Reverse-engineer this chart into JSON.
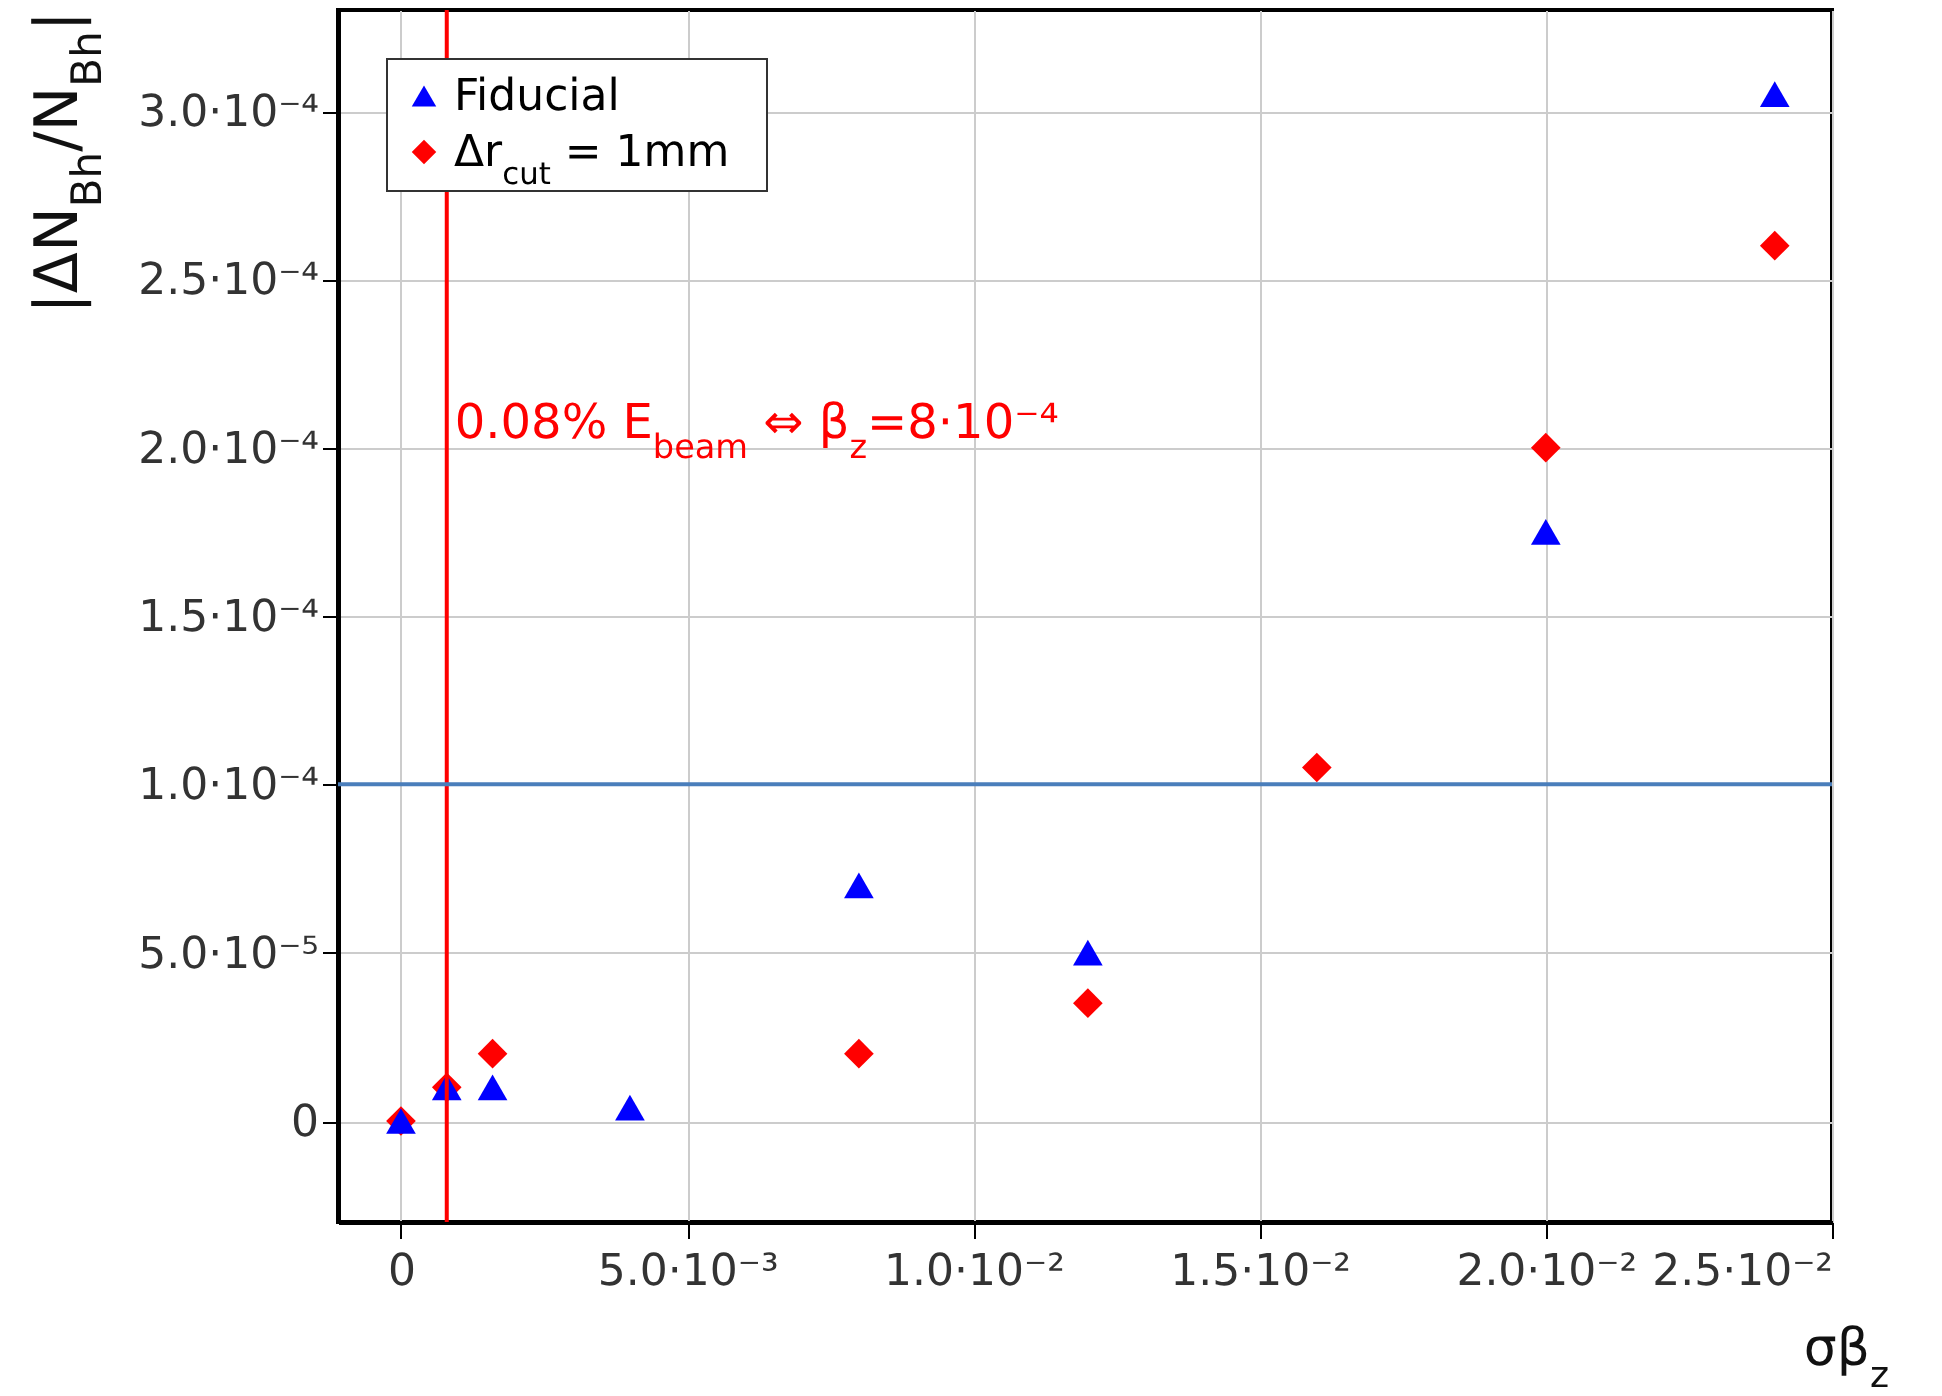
{
  "chart_data": {
    "type": "scatter",
    "xlabel": "σβ$_{z}$",
    "ylabel": "|ΔN$_{Bh}$/N$_{Bh}$|",
    "x": [
      0,
      0.0008,
      0.0016,
      0.004,
      0.008,
      0.012,
      0.016,
      0.02,
      0.024
    ],
    "series": [
      {
        "name": "Fiducial",
        "color": "#0000ff",
        "marker": "triangle",
        "values": [
          0,
          1e-05,
          1e-05,
          4e-06,
          7e-05,
          5e-05,
          null,
          0.000175,
          0.000305
        ]
      },
      {
        "name": "Δr$_{cut}$ = 1mm",
        "color": "#ff0000",
        "marker": "diamond",
        "values": [
          0,
          1e-05,
          2e-05,
          null,
          2e-05,
          3.5e-05,
          0.000105,
          0.0002,
          0.00026
        ]
      }
    ],
    "xlim": [
      -0.0011,
      0.025
    ],
    "xticks": [
      0,
      {
        "value": 0.005,
        "label": "5.0·10⁻³"
      },
      {
        "value": 0.01,
        "label": "1.0·10⁻²"
      },
      {
        "value": 0.015,
        "label": "1.5·10⁻²"
      },
      {
        "value": 0.02,
        "label": "2.0·10⁻²"
      },
      {
        "value": 0.025,
        "label": "2.5·10⁻²"
      }
    ],
    "ylim": [
      -3e-05,
      0.00033
    ],
    "yticks": [
      0,
      {
        "value": 5e-05,
        "label": "5.0·10⁻⁵"
      },
      {
        "value": 0.0001,
        "label": "1.0·10⁻⁴"
      },
      {
        "value": 0.00015,
        "label": "1.5·10⁻⁴"
      },
      {
        "value": 0.0002,
        "label": "2.0·10⁻⁴"
      },
      {
        "value": 0.00025,
        "label": "2.5·10⁻⁴"
      },
      {
        "value": 0.0003,
        "label": "3.0·10⁻⁴"
      }
    ],
    "ref_lines": [
      {
        "axis": "x",
        "value": 0.0008,
        "color": "#ff0000",
        "label": "0.08% E$_{beam}$ ⇔ β$_{z}$=8·10⁻⁴"
      },
      {
        "axis": "y",
        "value": 0.0001,
        "color": "#4a7ebb"
      }
    ],
    "grid": true,
    "legend": "top left"
  }
}
